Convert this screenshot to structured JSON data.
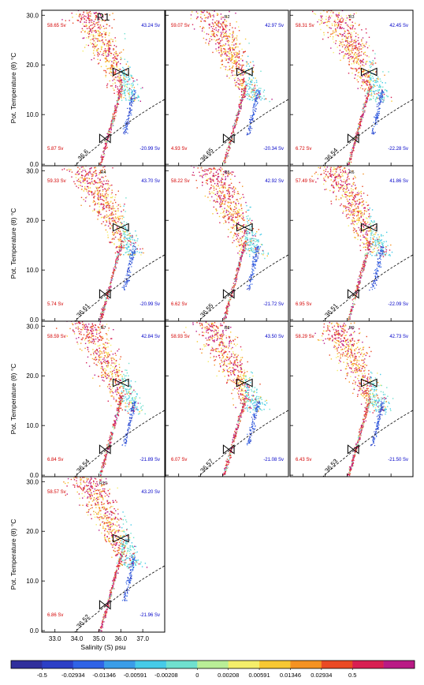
{
  "colors": {
    "upper_left": "#d40000",
    "upper_right": "#0000c8",
    "lower_left": "#d40000",
    "lower_right": "#0000c8"
  },
  "chart_data": {
    "type": "scatter",
    "layout": "small-multiples-4x3",
    "xlabel": "Salinity (S) psu",
    "ylabel": "Pot. Temperature (θ) °C",
    "xlim": [
      32.4,
      38.0
    ],
    "ylim": [
      -0.3,
      31.0
    ],
    "xticks": [
      "33.0",
      "34.0",
      "35.0",
      "36.0",
      "37.0"
    ],
    "yticks": [
      "0.0",
      "10.0",
      "20.0",
      "30.0"
    ],
    "colorbar": {
      "labels": [
        "-0.5",
        "-0.02934",
        "-0.01346",
        "-0.00591",
        "-0.00208",
        "0",
        "0.00208",
        "0.00591",
        "0.01346",
        "0.02934",
        "0.5"
      ],
      "colors": [
        "#302f9c",
        "#2c3fc6",
        "#2f63e6",
        "#3a9de8",
        "#46cbe8",
        "#6fe0cf",
        "#b9ee97",
        "#f4ee6a",
        "#f8c833",
        "#f59222",
        "#ea4a24",
        "#d81f52",
        "#b91a85"
      ]
    },
    "panels": [
      {
        "label": "R1",
        "big_label": true,
        "upper_left": "58.65 Sv",
        "upper_right": "43.24 Sv",
        "lower_left": "5.87 Sv",
        "lower_right": "-20.99 Sv",
        "density": "36.6"
      },
      {
        "label": "R2",
        "upper_left": "59.07 Sv",
        "upper_right": "42.97 Sv",
        "lower_left": "4.93 Sv",
        "lower_right": "-20.34 Sv",
        "density": "36.65"
      },
      {
        "label": "R3",
        "upper_left": "58.31 Sv",
        "upper_right": "42.45 Sv",
        "lower_left": "6.72 Sv",
        "lower_right": "-22.28 Sv",
        "density": "36.54"
      },
      {
        "label": "R4",
        "upper_left": "59.33 Sv",
        "upper_right": "43.70 Sv",
        "lower_left": "5.74 Sv",
        "lower_right": "-20.99 Sv",
        "density": "36.61"
      },
      {
        "label": "R5",
        "upper_left": "58.22 Sv",
        "upper_right": "42.92 Sv",
        "lower_left": "6.62 Sv",
        "lower_right": "-21.72 Sv",
        "density": "36.55"
      },
      {
        "label": "R6",
        "upper_left": "57.49 Sv",
        "upper_right": "41.86 Sv",
        "lower_left": "6.95 Sv",
        "lower_right": "-22.09 Sv",
        "density": "36.51"
      },
      {
        "label": "R7",
        "upper_left": "58.59 Sv",
        "upper_right": "42.84 Sv",
        "lower_left": "6.84 Sv",
        "lower_right": "-21.89 Sv",
        "density": "36.54"
      },
      {
        "label": "R8",
        "upper_left": "58.93 Sv",
        "upper_right": "43.50 Sv",
        "lower_left": "6.07 Sv",
        "lower_right": "-21.08 Sv",
        "density": "36.57"
      },
      {
        "label": "R9",
        "upper_left": "58.29 Sv",
        "upper_right": "42.73 Sv",
        "lower_left": "6.43 Sv",
        "lower_right": "-21.50 Sv",
        "density": "36.53"
      },
      {
        "label": "R10",
        "upper_left": "58.57 Sv",
        "upper_right": "43.20 Sv",
        "lower_left": "6.86 Sv",
        "lower_right": "-21.96 Sv",
        "density": "36.52"
      }
    ]
  }
}
